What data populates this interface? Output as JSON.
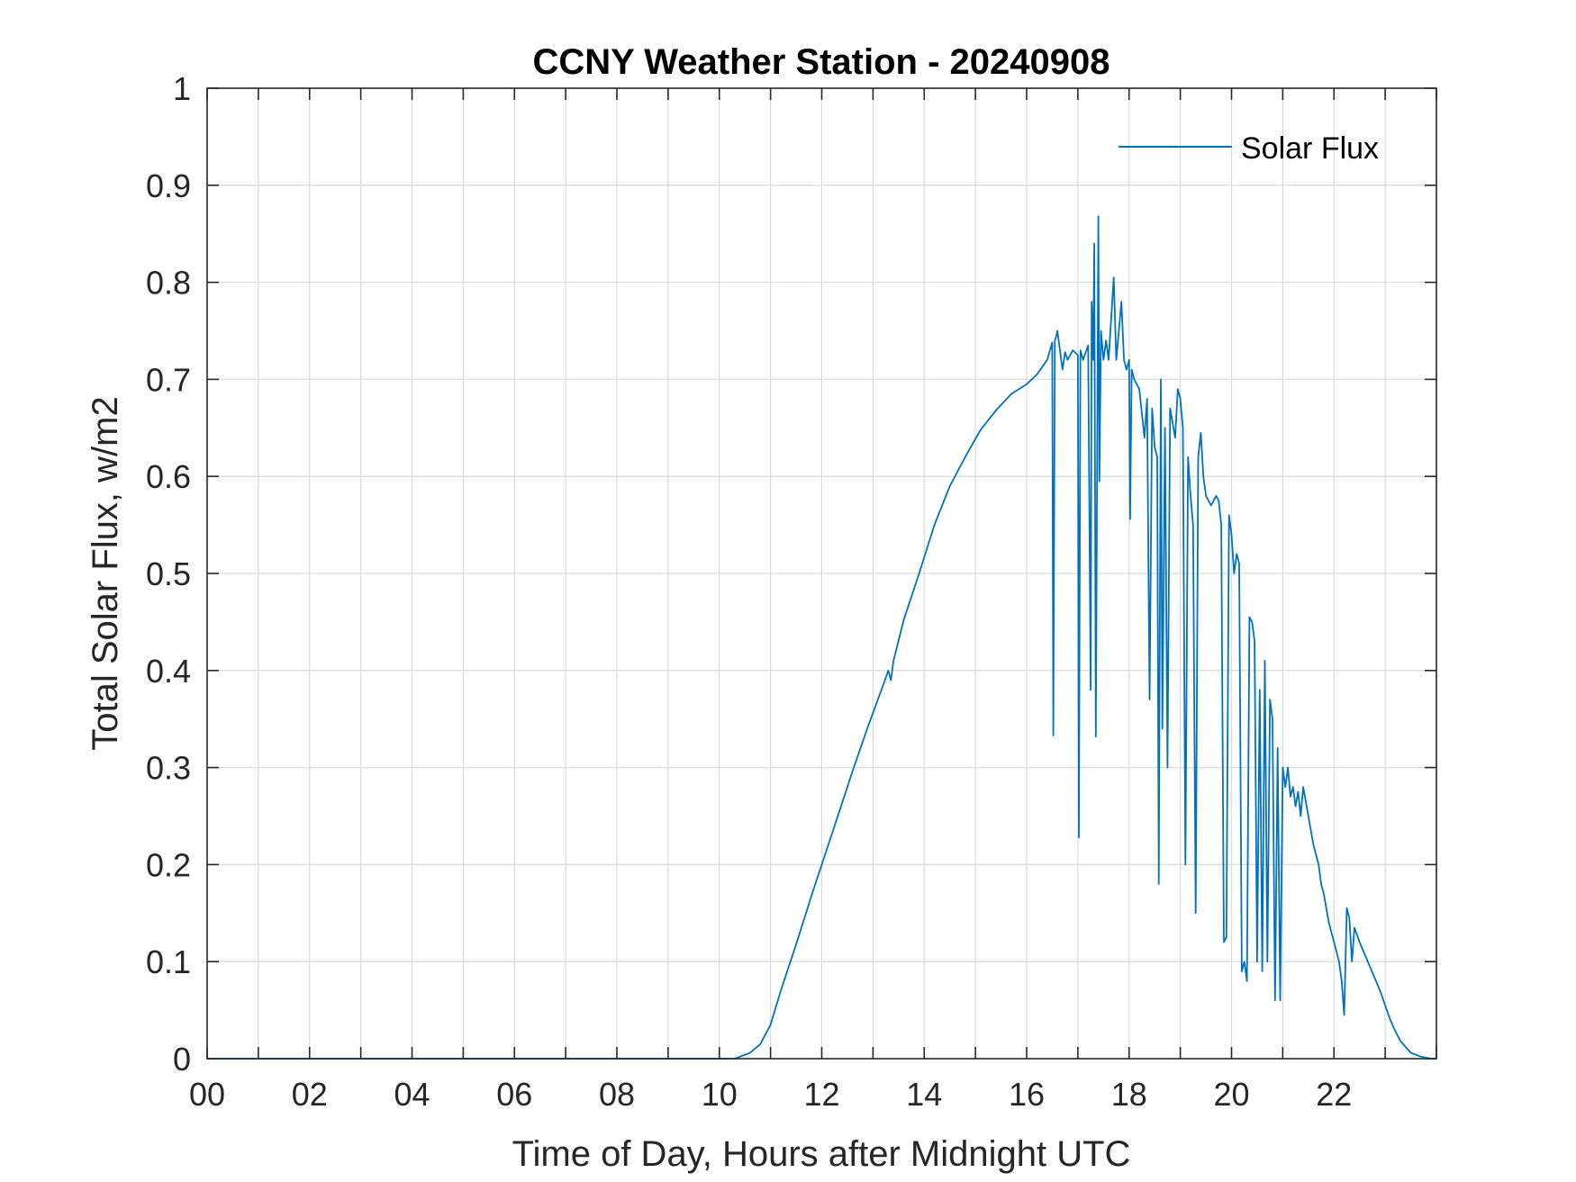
{
  "chart_data": {
    "type": "line",
    "title": "CCNY Weather Station - 20240908",
    "xlabel": "Time of Day, Hours after Midnight UTC",
    "ylabel": "Total Solar Flux, w/m2",
    "xlim": [
      0,
      24
    ],
    "ylim": [
      0,
      1
    ],
    "grid": true,
    "legend_position": "top-right",
    "x_tick_values": [
      0,
      2,
      4,
      6,
      8,
      10,
      12,
      14,
      16,
      18,
      20,
      22
    ],
    "x_tick_labels": [
      "00",
      "02",
      "04",
      "06",
      "08",
      "10",
      "12",
      "14",
      "16",
      "18",
      "20",
      "22"
    ],
    "y_tick_values": [
      0,
      0.1,
      0.2,
      0.3,
      0.4,
      0.5,
      0.6,
      0.7,
      0.8,
      0.9,
      1
    ],
    "y_tick_labels": [
      "0",
      "0.1",
      "0.2",
      "0.3",
      "0.4",
      "0.5",
      "0.6",
      "0.7",
      "0.8",
      "0.9",
      "1"
    ],
    "series": [
      {
        "name": "Solar Flux",
        "color": "#0072BD",
        "x": [
          0,
          10.3,
          10.6,
          10.8,
          11.0,
          11.2,
          11.5,
          11.8,
          12.0,
          12.3,
          12.6,
          12.9,
          13.2,
          13.3,
          13.35,
          13.4,
          13.6,
          13.9,
          14.2,
          14.5,
          14.8,
          15.1,
          15.4,
          15.7,
          16.0,
          16.2,
          16.4,
          16.5,
          16.52,
          16.55,
          16.58,
          16.6,
          16.65,
          16.7,
          16.75,
          16.8,
          16.9,
          17.0,
          17.02,
          17.05,
          17.1,
          17.2,
          17.25,
          17.27,
          17.3,
          17.32,
          17.35,
          17.4,
          17.42,
          17.45,
          17.5,
          17.55,
          17.6,
          17.7,
          17.75,
          17.8,
          17.85,
          17.9,
          17.95,
          18.0,
          18.02,
          18.05,
          18.1,
          18.2,
          18.3,
          18.35,
          18.4,
          18.45,
          18.5,
          18.55,
          18.58,
          18.62,
          18.65,
          18.7,
          18.75,
          18.8,
          18.9,
          18.95,
          19.0,
          19.05,
          19.1,
          19.15,
          19.2,
          19.25,
          19.3,
          19.35,
          19.4,
          19.45,
          19.5,
          19.6,
          19.7,
          19.75,
          19.8,
          19.85,
          19.9,
          19.95,
          20.0,
          20.05,
          20.1,
          20.15,
          20.2,
          20.25,
          20.3,
          20.35,
          20.4,
          20.45,
          20.5,
          20.55,
          20.6,
          20.65,
          20.7,
          20.75,
          20.8,
          20.85,
          20.9,
          20.95,
          21.0,
          21.05,
          21.1,
          21.15,
          21.2,
          21.25,
          21.3,
          21.35,
          21.4,
          21.5,
          21.6,
          21.7,
          21.75,
          21.8,
          21.9,
          22.0,
          22.1,
          22.15,
          22.2,
          22.25,
          22.3,
          22.35,
          22.4,
          22.5,
          22.7,
          22.9,
          23.1,
          23.2,
          23.3,
          23.5,
          23.7,
          23.9,
          24.0
        ],
        "values": [
          0,
          0,
          0.006,
          0.015,
          0.035,
          0.07,
          0.118,
          0.168,
          0.2,
          0.248,
          0.296,
          0.342,
          0.385,
          0.4,
          0.39,
          0.41,
          0.452,
          0.5,
          0.55,
          0.59,
          0.62,
          0.648,
          0.668,
          0.685,
          0.695,
          0.705,
          0.72,
          0.738,
          0.333,
          0.74,
          0.745,
          0.75,
          0.73,
          0.71,
          0.728,
          0.72,
          0.73,
          0.725,
          0.228,
          0.73,
          0.72,
          0.735,
          0.38,
          0.78,
          0.72,
          0.84,
          0.332,
          0.868,
          0.595,
          0.75,
          0.72,
          0.74,
          0.72,
          0.805,
          0.72,
          0.75,
          0.78,
          0.72,
          0.71,
          0.72,
          0.556,
          0.71,
          0.7,
          0.69,
          0.64,
          0.68,
          0.37,
          0.67,
          0.63,
          0.62,
          0.18,
          0.7,
          0.34,
          0.65,
          0.3,
          0.67,
          0.64,
          0.69,
          0.68,
          0.65,
          0.2,
          0.62,
          0.58,
          0.55,
          0.15,
          0.62,
          0.645,
          0.6,
          0.58,
          0.57,
          0.58,
          0.575,
          0.55,
          0.12,
          0.125,
          0.56,
          0.54,
          0.5,
          0.52,
          0.51,
          0.09,
          0.1,
          0.08,
          0.455,
          0.45,
          0.43,
          0.1,
          0.38,
          0.09,
          0.41,
          0.1,
          0.37,
          0.35,
          0.06,
          0.32,
          0.06,
          0.3,
          0.28,
          0.3,
          0.27,
          0.28,
          0.26,
          0.275,
          0.25,
          0.28,
          0.25,
          0.22,
          0.2,
          0.18,
          0.17,
          0.14,
          0.12,
          0.1,
          0.08,
          0.045,
          0.155,
          0.145,
          0.1,
          0.135,
          0.12,
          0.095,
          0.07,
          0.04,
          0.028,
          0.018,
          0.006,
          0.002,
          0,
          0
        ]
      }
    ]
  }
}
